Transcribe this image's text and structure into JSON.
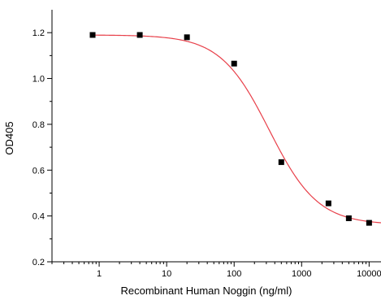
{
  "chart_data": {
    "type": "scatter",
    "xlabel": "Recombinant Human Noggin (ng/ml)",
    "ylabel": "OD405",
    "x_scale": "log",
    "xlim": [
      0.2,
      15000
    ],
    "ylim": [
      0.2,
      1.3
    ],
    "x_ticks": [
      1,
      10,
      100,
      1000,
      10000
    ],
    "x_tick_labels": [
      "1",
      "10",
      "100",
      "1000",
      "10000"
    ],
    "y_ticks": [
      0.2,
      0.4,
      0.6,
      0.8,
      1.0,
      1.2
    ],
    "y_tick_labels": [
      "0.2",
      "0.4",
      "0.6",
      "0.8",
      "1.0",
      "1.2"
    ],
    "grid": false,
    "series": [
      {
        "type": "scatter",
        "marker": "square",
        "color": "#000000",
        "x": [
          0.8,
          4,
          20,
          100,
          500,
          2500,
          5000,
          10000
        ],
        "y": [
          1.19,
          1.19,
          1.18,
          1.065,
          0.635,
          0.455,
          0.39,
          0.37
        ]
      },
      {
        "type": "line",
        "color": "#e8404a",
        "fit": "four-parameter-logistic",
        "top": 1.19,
        "bottom": 0.362,
        "ec50": 330,
        "hill": 1.2
      }
    ]
  }
}
